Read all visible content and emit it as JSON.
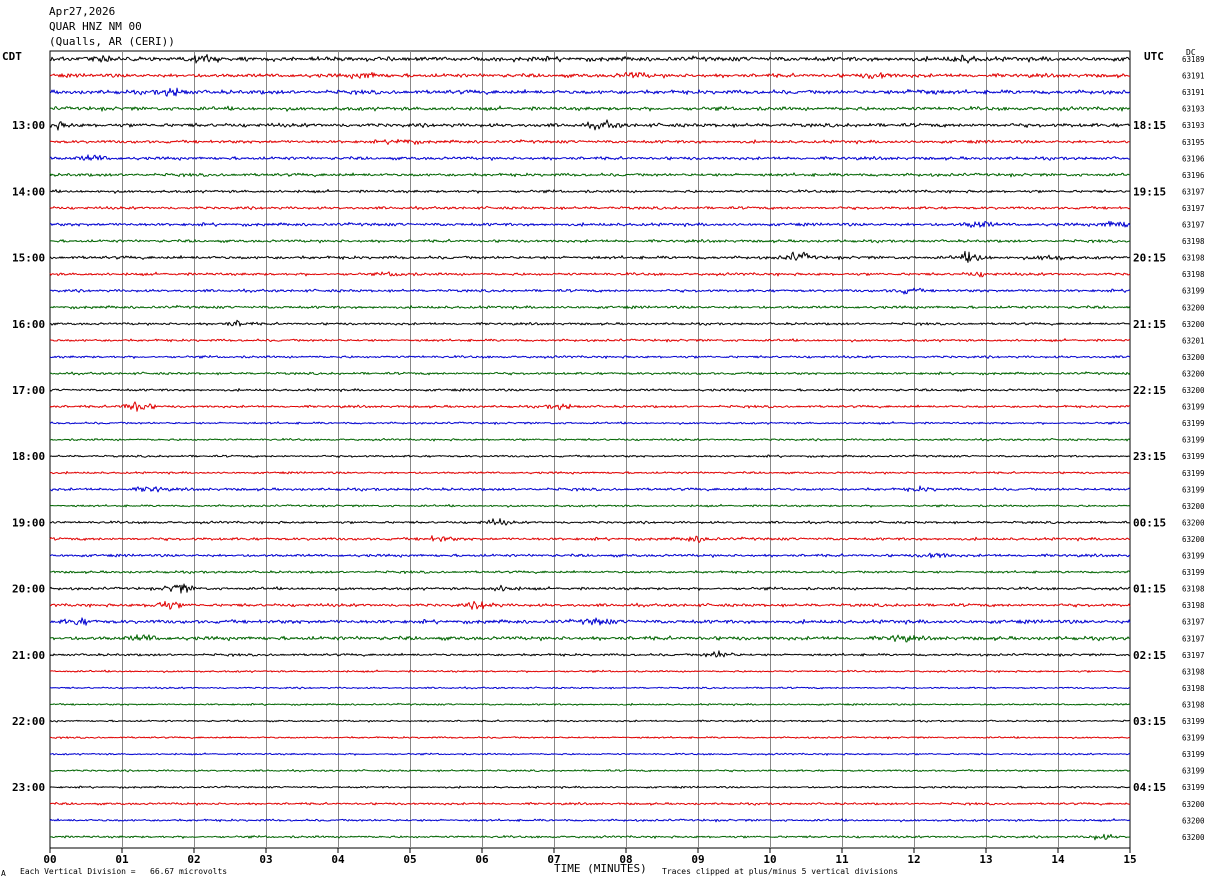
{
  "header": {
    "date": "Apr27,2026",
    "station": "QUAR HNZ NM 00",
    "location": "(Qualls, AR (CERI))"
  },
  "labels": {
    "left_tz": "CDT",
    "right_tz": "UTC",
    "dc_title": "DC"
  },
  "footer": {
    "scale_note": "Each Vertical Division =   66.67 microvolts",
    "clip_note": "Traces clipped at plus/minus 5 vertical divisions",
    "corner_mark": "A"
  },
  "chart_data": {
    "type": "line",
    "title": "QUAR HNZ NM 00",
    "xlabel": "TIME (MINUTES)",
    "xlim": [
      0,
      15
    ],
    "x_ticks": [
      "00",
      "01",
      "02",
      "03",
      "04",
      "05",
      "06",
      "07",
      "08",
      "09",
      "10",
      "11",
      "12",
      "13",
      "14",
      "15"
    ],
    "rows_per_hour": 4,
    "row_minutes": 15,
    "trace_colors": [
      "#000000",
      "#e00000",
      "#0000d0",
      "#006400"
    ],
    "left_hour_labels": [
      "13:00",
      "14:00",
      "15:00",
      "16:00",
      "17:00",
      "18:00",
      "19:00",
      "20:00",
      "21:00",
      "22:00",
      "23:00"
    ],
    "right_hour_labels": [
      "18:15",
      "19:15",
      "20:15",
      "21:15",
      "22:15",
      "23:15",
      "00:15",
      "01:15",
      "02:15",
      "03:15",
      "04:15"
    ],
    "first_labeled_row": 4,
    "dc_offsets": [
      "63189",
      "63191",
      "63191",
      "63193",
      "63193",
      "63195",
      "63196",
      "63196",
      "63197",
      "63197",
      "63197",
      "63198",
      "63198",
      "63198",
      "63199",
      "63200",
      "63200",
      "63201",
      "63200",
      "63200",
      "63200",
      "63199",
      "63199",
      "63199",
      "63199",
      "63199",
      "63199",
      "63200",
      "63200",
      "63200",
      "63199",
      "63199",
      "63198",
      "63198",
      "63197",
      "63197",
      "63197",
      "63198",
      "63198",
      "63198",
      "63199",
      "63199",
      "63199",
      "63199",
      "63199",
      "63200",
      "63200",
      "63200"
    ],
    "row_activity": [
      2.6,
      2.2,
      2.4,
      2.2,
      2.2,
      1.8,
      1.8,
      1.8,
      1.6,
      1.6,
      1.8,
      1.6,
      1.8,
      1.6,
      1.6,
      1.6,
      1.4,
      1.4,
      1.4,
      1.4,
      1.4,
      1.4,
      1.2,
      1.2,
      1.2,
      1.2,
      1.6,
      1.2,
      1.4,
      1.6,
      1.6,
      1.4,
      1.6,
      1.8,
      2.2,
      2.2,
      1.4,
      1.1,
      1.0,
      1.0,
      1.0,
      1.0,
      1.0,
      1.1,
      1.1,
      1.3,
      1.3,
      1.3
    ],
    "bursts": [
      {
        "row": 0,
        "minute": 0.7,
        "amplitude": 3
      },
      {
        "row": 0,
        "minute": 2.1,
        "amplitude": 3
      },
      {
        "row": 0,
        "minute": 12.7,
        "amplitude": 3
      },
      {
        "row": 1,
        "minute": 4.4,
        "amplitude": 3
      },
      {
        "row": 1,
        "minute": 8.1,
        "amplitude": 3
      },
      {
        "row": 1,
        "minute": 11.5,
        "amplitude": 3
      },
      {
        "row": 2,
        "minute": 1.7,
        "amplitude": 4
      },
      {
        "row": 2,
        "minute": 12.1,
        "amplitude": 3
      },
      {
        "row": 4,
        "minute": 0.1,
        "amplitude": 3
      },
      {
        "row": 4,
        "minute": 7.7,
        "amplitude": 4
      },
      {
        "row": 5,
        "minute": 4.9,
        "amplitude": 3
      },
      {
        "row": 6,
        "minute": 0.6,
        "amplitude": 3
      },
      {
        "row": 10,
        "minute": 12.9,
        "amplitude": 4
      },
      {
        "row": 10,
        "minute": 14.8,
        "amplitude": 4
      },
      {
        "row": 12,
        "minute": 10.4,
        "amplitude": 5
      },
      {
        "row": 12,
        "minute": 12.8,
        "amplitude": 5
      },
      {
        "row": 12,
        "minute": 13.9,
        "amplitude": 3
      },
      {
        "row": 13,
        "minute": 4.8,
        "amplitude": 2
      },
      {
        "row": 13,
        "minute": 12.9,
        "amplitude": 2
      },
      {
        "row": 14,
        "minute": 11.9,
        "amplitude": 3
      },
      {
        "row": 16,
        "minute": 2.6,
        "amplitude": 3
      },
      {
        "row": 21,
        "minute": 1.2,
        "amplitude": 7
      },
      {
        "row": 21,
        "minute": 7.1,
        "amplitude": 3
      },
      {
        "row": 26,
        "minute": 1.4,
        "amplitude": 3
      },
      {
        "row": 26,
        "minute": 12.1,
        "amplitude": 2
      },
      {
        "row": 28,
        "minute": 6.2,
        "amplitude": 3
      },
      {
        "row": 29,
        "minute": 5.4,
        "amplitude": 3
      },
      {
        "row": 29,
        "minute": 9.0,
        "amplitude": 3
      },
      {
        "row": 30,
        "minute": 12.3,
        "amplitude": 3
      },
      {
        "row": 32,
        "minute": 1.8,
        "amplitude": 5
      },
      {
        "row": 32,
        "minute": 6.3,
        "amplitude": 3
      },
      {
        "row": 33,
        "minute": 1.6,
        "amplitude": 5
      },
      {
        "row": 33,
        "minute": 6.0,
        "amplitude": 4
      },
      {
        "row": 34,
        "minute": 0.4,
        "amplitude": 3
      },
      {
        "row": 34,
        "minute": 7.6,
        "amplitude": 3
      },
      {
        "row": 35,
        "minute": 1.3,
        "amplitude": 3
      },
      {
        "row": 35,
        "minute": 11.8,
        "amplitude": 3
      },
      {
        "row": 36,
        "minute": 9.3,
        "amplitude": 4
      },
      {
        "row": 47,
        "minute": 14.6,
        "amplitude": 3
      }
    ]
  }
}
